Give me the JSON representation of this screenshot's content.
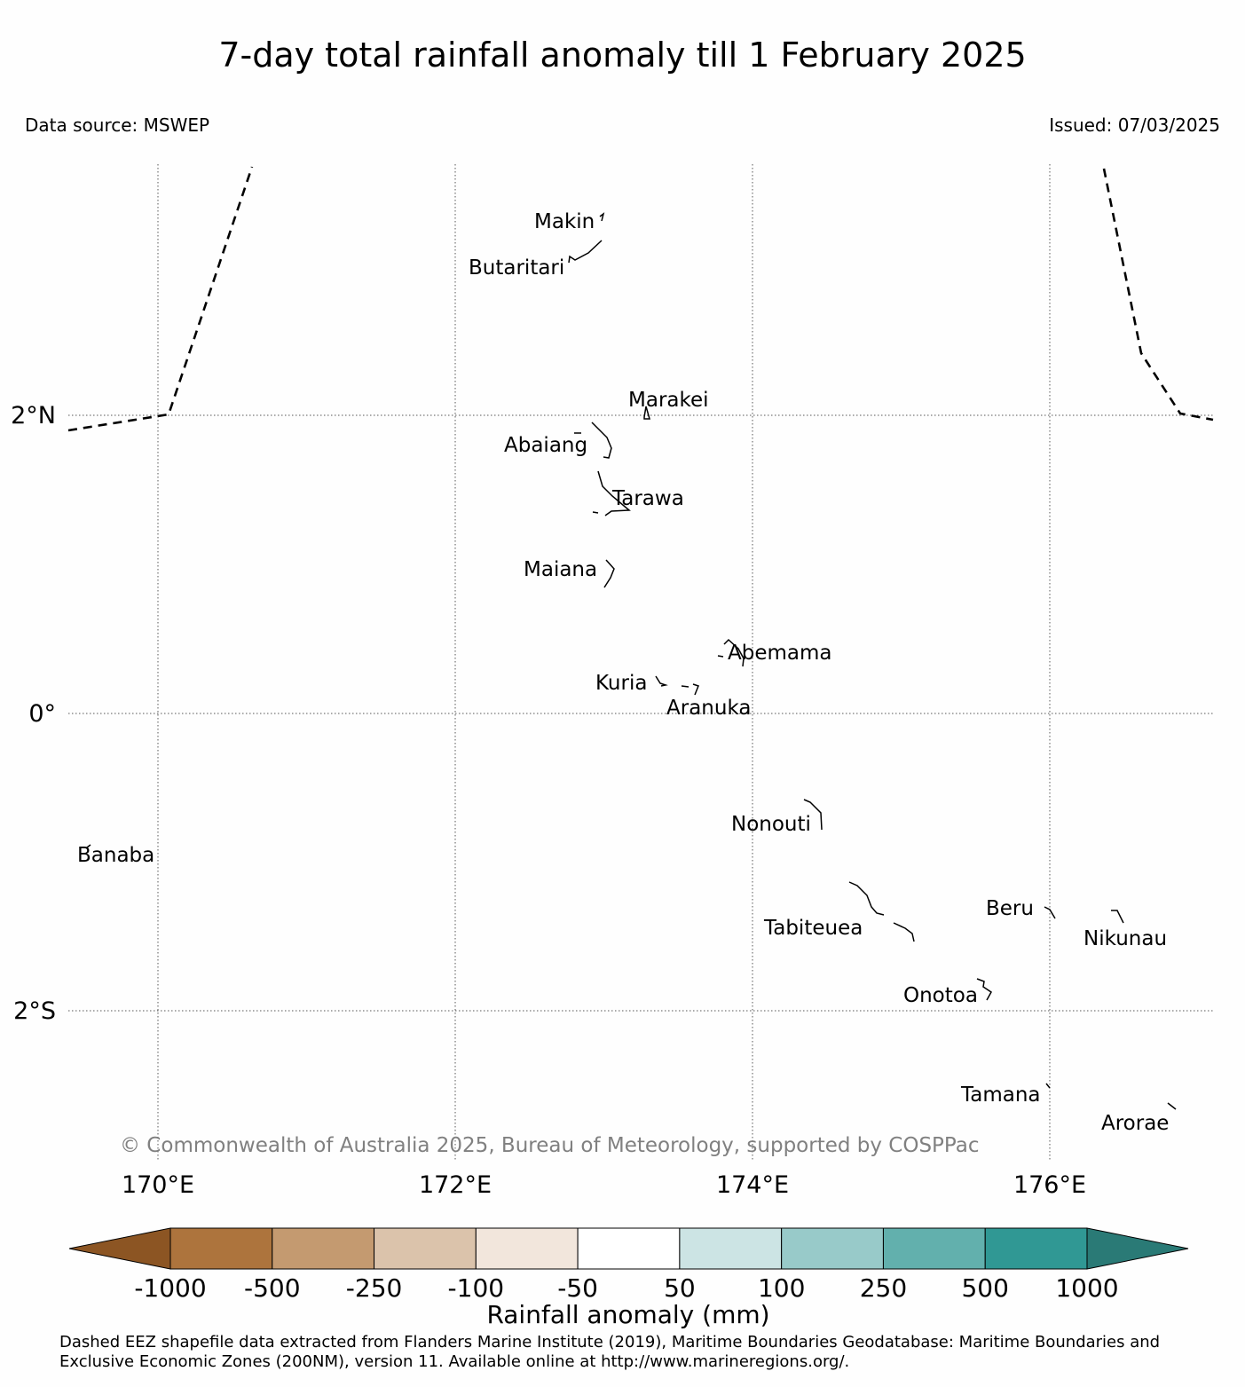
{
  "title": "7-day total rainfall anomaly till 1 February 2025",
  "data_source": "Data source: MSWEP",
  "issued": "Issued: 07/03/2025",
  "map": {
    "lon_ticks": [
      "170°E",
      "172°E",
      "174°E",
      "176°E"
    ],
    "lat_ticks": [
      "2°N",
      "0°",
      "2°S"
    ],
    "islands": [
      "Makin",
      "Butaritari",
      "Marakei",
      "Abaiang",
      "Tarawa",
      "Maiana",
      "Abemama",
      "Kuria",
      "Aranuka",
      "Nonouti",
      "Banaba",
      "Beru",
      "Nikunau",
      "Tabiteuea",
      "Onotoa",
      "Tamana",
      "Arorae"
    ],
    "copyright": "© Commonwealth of Australia 2025, Bureau of Meteorology, supported by COSPPac",
    "grid": true,
    "eez_style": "dashed"
  },
  "colorbar": {
    "title": "Rainfall anomaly (mm)",
    "labels": [
      "-1000",
      "-500",
      "-250",
      "-100",
      "-50",
      "50",
      "100",
      "250",
      "500",
      "1000"
    ],
    "colors": [
      "#8c5523",
      "#ad743d",
      "#c49a70",
      "#dbc3ab",
      "#f2e6dc",
      "#ffffff",
      "#cce4e4",
      "#98cac9",
      "#62b0ad",
      "#309894",
      "#2a7a76"
    ]
  },
  "footnote": {
    "line1": "Dashed EEZ shapefile data extracted from Flanders Marine Institute (2019), Maritime Boundaries Geodatabase: Maritime Boundaries and",
    "line2": "Exclusive Economic Zones (200NM), version 11. Available online at http://www.marineregions.org/."
  }
}
